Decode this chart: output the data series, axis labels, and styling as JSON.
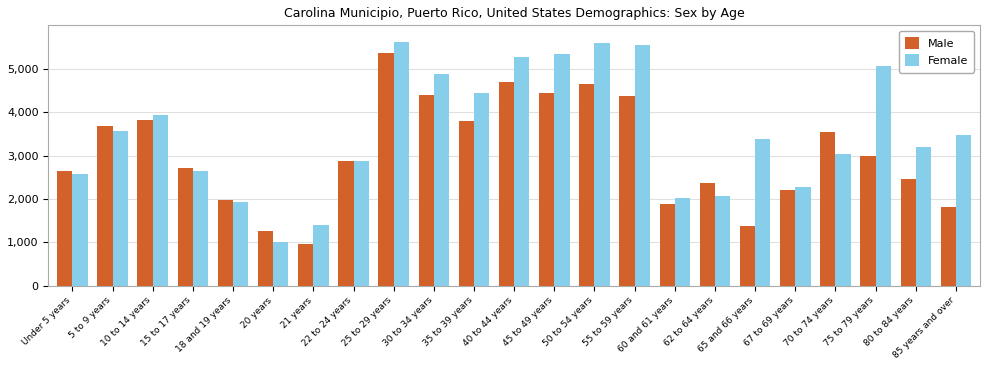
{
  "title": "Carolina Municipio, Puerto Rico, United States Demographics: Sex by Age",
  "categories": [
    "Under 5 years",
    "5 to 9 years",
    "10 to 14 years",
    "15 to 17 years",
    "18 and 19 years",
    "20 years",
    "21 years",
    "22 to 24 years",
    "25 to 29 years",
    "30 to 34 years",
    "35 to 39 years",
    "40 to 44 years",
    "45 to 49 years",
    "50 to 54 years",
    "55 to 59 years",
    "60 and 61 years",
    "62 to 64 years",
    "65 and 66 years",
    "67 to 69 years",
    "70 to 74 years",
    "75 to 79 years",
    "80 to 84 years",
    "85 years and over"
  ],
  "male": [
    2650,
    3670,
    3820,
    2720,
    1970,
    1260,
    970,
    2880,
    5360,
    4390,
    3790,
    4700,
    4450,
    4650,
    4360,
    1880,
    2360,
    1380,
    2210,
    3540,
    2990,
    2460,
    1810
  ],
  "female": [
    2570,
    3570,
    3940,
    2650,
    1930,
    1000,
    1390,
    2870,
    5620,
    4870,
    4440,
    5280,
    5340,
    5590,
    5540,
    2030,
    2060,
    3380,
    2270,
    3030,
    5060,
    3200,
    3480
  ],
  "male_color": "#d2622a",
  "female_color": "#87ceeb",
  "bar_width": 0.38,
  "ylim": [
    0,
    6000
  ],
  "yticks": [
    0,
    1000,
    2000,
    3000,
    4000,
    5000
  ],
  "legend_labels": [
    "Male",
    "Female"
  ],
  "background_color": "#ffffff",
  "grid_color": "#e0e0e0",
  "spine_color": "#aaaaaa"
}
